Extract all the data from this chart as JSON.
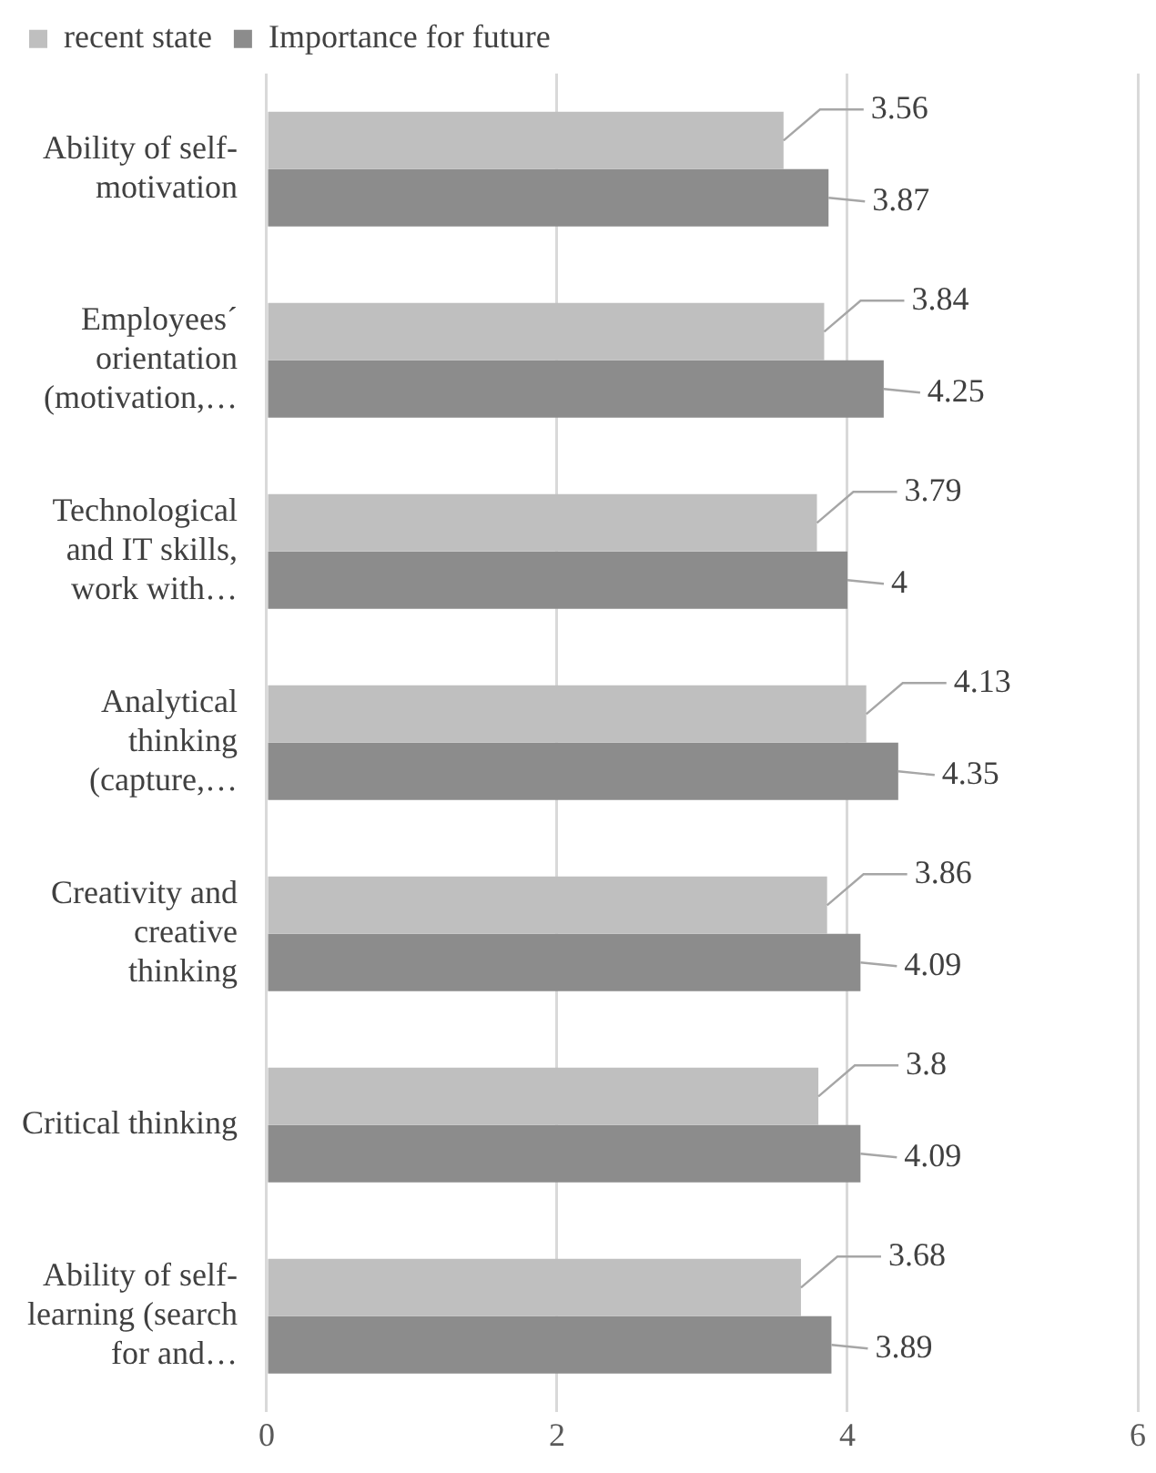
{
  "chart_data": {
    "type": "bar",
    "orientation": "horizontal",
    "categories": [
      "Ability of self-motivation",
      "Employees´ orientation (motivation,…",
      "Technological and IT skills, work with…",
      "Analytical thinking (capture,…",
      "Creativity and creative thinking",
      "Critical thinking",
      "Ability of self-learning (search for and…"
    ],
    "series": [
      {
        "name": "recent state",
        "color": "#bfbfbf",
        "values": [
          3.56,
          3.84,
          3.79,
          4.13,
          3.86,
          3.8,
          3.68
        ]
      },
      {
        "name": "Importance for future",
        "color": "#8c8c8c",
        "values": [
          3.87,
          4.25,
          4,
          4.35,
          4.09,
          4.09,
          3.89
        ]
      }
    ],
    "xlim": [
      0,
      6
    ],
    "xticks": [
      0,
      2,
      4,
      6
    ],
    "grid": "x",
    "legend": "top left",
    "data_labels": true
  }
}
